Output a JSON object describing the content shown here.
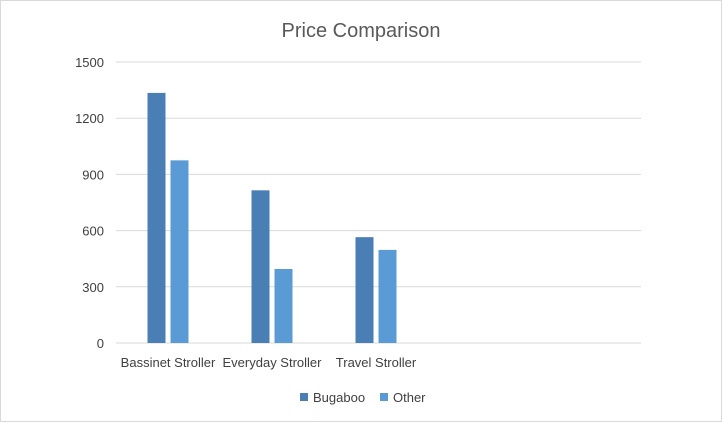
{
  "chart_data": {
    "type": "bar",
    "title": "Price Comparison",
    "categories": [
      "Bassinet Stroller",
      "Everyday Stroller",
      "Travel Stroller"
    ],
    "series": [
      {
        "name": "Bugaboo",
        "values": [
          1335,
          815,
          565
        ],
        "color": "#4a7fb5"
      },
      {
        "name": "Other",
        "values": [
          975,
          395,
          497
        ],
        "color": "#5b9bd5"
      }
    ],
    "ylim": [
      0,
      1500
    ],
    "yticks": [
      "0",
      "300",
      "600",
      "900",
      "1200",
      "1500"
    ],
    "ytick_values": [
      0,
      300,
      600,
      900,
      1200,
      1500
    ],
    "grid": true,
    "legend": "bottom"
  }
}
